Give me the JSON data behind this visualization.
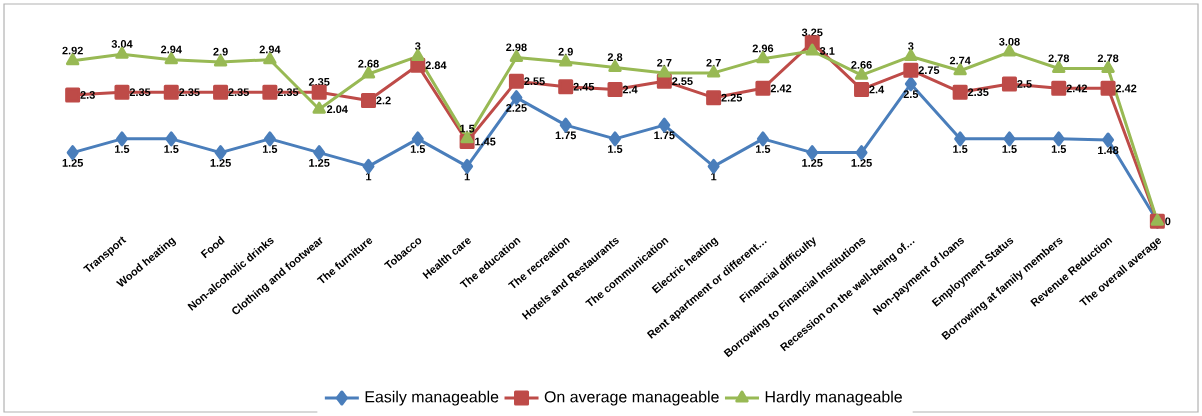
{
  "chart_data": {
    "type": "line",
    "categories": [
      null,
      "Transport",
      "Wood heating",
      "Food",
      "Non-alcoholic drinks",
      "Clothing and footwear",
      "The furniture",
      "Tobacco",
      "Health care",
      "The education",
      "The recreation",
      "Hotels and Restaurants",
      "The communication",
      "Electric heating",
      "Rent apartment or different…",
      "Financial difficulty",
      "Borrowing to Financial Institutions",
      "Recession on the well-being of…",
      "Non-payment of loans",
      "Employment Status",
      "Borrowing at family members",
      "Revenue Reduction",
      "The overall average"
    ],
    "series": [
      {
        "name": "Easily manageable",
        "color": "#4a7ebb",
        "marker": "diamond",
        "values": [
          1.25,
          1.5,
          1.5,
          1.25,
          1.5,
          1.25,
          1,
          1.5,
          1,
          2.25,
          1.75,
          1.5,
          1.75,
          1,
          1.5,
          1.25,
          1.25,
          2.5,
          1.5,
          1.5,
          1.5,
          1.48,
          0
        ],
        "value_labels": [
          "1.25",
          "1.5",
          "1.5",
          "1.25",
          "1.5",
          "1.25",
          "1",
          "1.5",
          "1",
          "2.25",
          "1.75",
          "1.5",
          "1.75",
          "1",
          "1.5",
          "1.25",
          "1.25",
          "2.5",
          "1.5",
          "1.5",
          "1.5",
          "1.48",
          null
        ]
      },
      {
        "name": "On average manageable",
        "color": "#be4b48",
        "marker": "square",
        "values": [
          2.3,
          2.35,
          2.35,
          2.35,
          2.35,
          2.35,
          2.2,
          2.84,
          1.45,
          2.55,
          2.45,
          2.4,
          2.55,
          2.25,
          2.42,
          3.25,
          2.4,
          2.75,
          2.35,
          2.5,
          2.42,
          2.42,
          0
        ],
        "value_labels": [
          "2.3",
          "2.35",
          "2.35",
          "2.35",
          "2.35",
          "2.35",
          "2.2",
          "2.84",
          "1.45",
          "2.55",
          "2.45",
          "2.4",
          "2.55",
          "2.25",
          "2.42",
          "3.25",
          "2.4",
          "2.75",
          "2.35",
          "2.5",
          "2.42",
          "2.42",
          null
        ]
      },
      {
        "name": "Hardly manageable",
        "color": "#98b954",
        "marker": "triangle",
        "values": [
          2.92,
          3.04,
          2.94,
          2.9,
          2.94,
          2.04,
          2.68,
          3,
          1.5,
          2.98,
          2.9,
          2.8,
          2.7,
          2.7,
          2.96,
          3.1,
          2.66,
          3,
          2.74,
          3.08,
          2.78,
          2.78,
          0
        ],
        "value_labels": [
          "2.92",
          "3.04",
          "2.94",
          "2.9",
          "2.94",
          "2.04",
          "2.68",
          "3",
          "1.5",
          "2.98",
          "2.9",
          "2.8",
          "2.7",
          "2.7",
          "2.96",
          "3.1",
          "2.66",
          "3",
          "2.74",
          "3.08",
          "2.78",
          "2.78",
          "0"
        ]
      }
    ],
    "legend": "bottom",
    "grid": false
  }
}
